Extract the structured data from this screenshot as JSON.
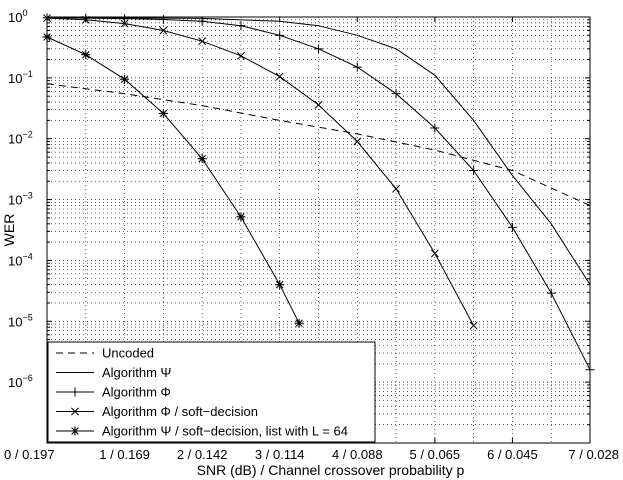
{
  "chart_data": {
    "type": "line",
    "title": "",
    "xlabel": "SNR (dB) / Channel crossover probability p",
    "ylabel": "WER",
    "xlim": [
      0,
      7
    ],
    "ylim": [
      1e-07,
      1
    ],
    "yscale": "log",
    "grid": true,
    "legend_position": "bottom-left",
    "x_ticks": [
      0,
      1,
      2,
      3,
      4,
      5,
      6,
      7
    ],
    "x_tick_labels": [
      "0 / 0.197",
      "1 / 0.169",
      "2 / 0.142",
      "3 / 0.114",
      "4 / 0.088",
      "5 / 0.065",
      "6 / 0.045",
      "7 / 0.028"
    ],
    "y_ticks": [
      1,
      0.1,
      0.01,
      0.001,
      0.0001,
      1e-05,
      1e-06
    ],
    "y_tick_labels": [
      {
        "base": "10",
        "exp": "0"
      },
      {
        "base": "10",
        "exp": "−1"
      },
      {
        "base": "10",
        "exp": "−2"
      },
      {
        "base": "10",
        "exp": "−3"
      },
      {
        "base": "10",
        "exp": "−4"
      },
      {
        "base": "10",
        "exp": "−5"
      },
      {
        "base": "10",
        "exp": "−6"
      }
    ],
    "series": [
      {
        "name": "Uncoded",
        "line": "dashed",
        "marker": "none",
        "x": [
          0,
          1,
          2,
          3,
          4,
          5,
          6,
          7
        ],
        "y": [
          0.08,
          0.055,
          0.035,
          0.02,
          0.012,
          0.0065,
          0.003,
          0.0008
        ]
      },
      {
        "name": "Algorithm Ψ",
        "line": "solid",
        "marker": "none",
        "x": [
          0,
          1,
          2,
          3,
          3.5,
          4,
          4.5,
          5,
          5.5,
          6,
          6.5,
          7
        ],
        "y": [
          0.98,
          0.97,
          0.95,
          0.85,
          0.72,
          0.5,
          0.3,
          0.11,
          0.02,
          0.0025,
          0.0004,
          4e-05
        ]
      },
      {
        "name": "Algorithm Φ",
        "line": "solid",
        "marker": "plus",
        "x": [
          0,
          0.5,
          1,
          1.5,
          2,
          2.5,
          3,
          3.5,
          4,
          4.5,
          5,
          5.5,
          6,
          6.5,
          7
        ],
        "y": [
          0.97,
          0.96,
          0.94,
          0.91,
          0.85,
          0.72,
          0.5,
          0.3,
          0.15,
          0.055,
          0.015,
          0.003,
          0.00035,
          2.9e-05,
          1.6e-06
        ]
      },
      {
        "name": "Algorithm Φ / soft−decision",
        "line": "solid",
        "marker": "x",
        "x": [
          0,
          0.5,
          1,
          1.5,
          2,
          2.5,
          3,
          3.5,
          4,
          4.5,
          5,
          5.5
        ],
        "y": [
          0.96,
          0.9,
          0.78,
          0.6,
          0.4,
          0.23,
          0.105,
          0.036,
          0.009,
          0.0015,
          0.00013,
          8.5e-06
        ]
      },
      {
        "name": "Algorithm Ψ / soft−decision, list with L = 64",
        "line": "solid",
        "marker": "asterisk",
        "x": [
          0,
          0.5,
          1,
          1.5,
          2,
          2.5,
          3,
          3.25
        ],
        "y": [
          0.47,
          0.24,
          0.095,
          0.026,
          0.0047,
          0.00052,
          4e-05,
          9.3e-06
        ]
      }
    ]
  }
}
